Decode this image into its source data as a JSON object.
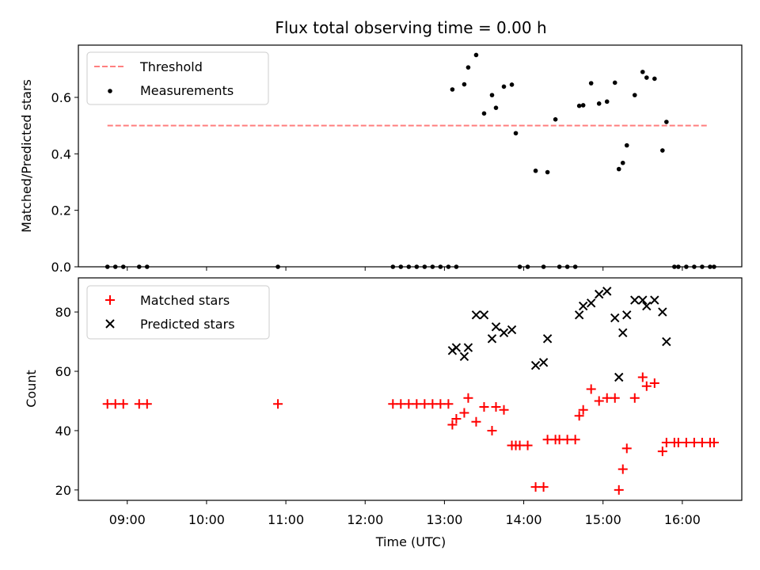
{
  "title": "Flux total observing time = 0.00 h",
  "colors": {
    "threshold": "#ff7f7f",
    "measurement": "#000000",
    "matched": "#ff0000",
    "predicted": "#000000"
  },
  "chart_data": [
    {
      "type": "scatter",
      "ylabel": "Matched/Predicted stars",
      "ylim": [
        0,
        0.785
      ],
      "yticks": [
        0.0,
        0.2,
        0.4,
        0.6
      ],
      "xlim": [
        "08:23",
        "16:45"
      ],
      "grid": false,
      "legend_position": "top-left",
      "series": [
        {
          "name": "Threshold",
          "kind": "dashed-line",
          "x": [
            "08:45",
            "16:20"
          ],
          "y": [
            0.5,
            0.5
          ]
        },
        {
          "name": "Measurements",
          "kind": "dot",
          "x": [
            "08:45",
            "08:51",
            "08:57",
            "09:09",
            "09:15",
            "10:54",
            "12:21",
            "12:27",
            "12:33",
            "12:39",
            "12:45",
            "12:51",
            "12:57",
            "13:03",
            "13:06",
            "13:09",
            "13:15",
            "13:18",
            "13:24",
            "13:30",
            "13:36",
            "13:39",
            "13:45",
            "13:51",
            "13:54",
            "13:57",
            "14:03",
            "14:09",
            "14:15",
            "14:18",
            "14:24",
            "14:27",
            "14:33",
            "14:39",
            "14:42",
            "14:45",
            "14:51",
            "14:57",
            "15:03",
            "15:09",
            "15:12",
            "15:15",
            "15:18",
            "15:24",
            "15:30",
            "15:33",
            "15:39",
            "15:45",
            "15:48",
            "15:54",
            "15:57",
            "16:03",
            "16:09",
            "16:15",
            "16:21",
            "16:24"
          ],
          "y": [
            0,
            0,
            0,
            0,
            0,
            0,
            0,
            0,
            0,
            0,
            0,
            0,
            0,
            0,
            0.628,
            0,
            0.646,
            0.706,
            0.75,
            0.543,
            0.608,
            0.563,
            0.638,
            0.645,
            0.473,
            0,
            0,
            0.34,
            0,
            0.335,
            0.522,
            0,
            0,
            0,
            0.57,
            0.572,
            0.65,
            0.578,
            0.585,
            0.652,
            0.346,
            0.368,
            0.43,
            0.608,
            0.69,
            0.67,
            0.666,
            0.412,
            0.513,
            0,
            0,
            0,
            0,
            0,
            0,
            0
          ]
        }
      ]
    },
    {
      "type": "scatter",
      "ylabel": "Count",
      "xlabel": "Time (UTC)",
      "ylim": [
        16.5,
        91.5
      ],
      "yticks": [
        20,
        40,
        60,
        80
      ],
      "xlim": [
        "08:23",
        "16:45"
      ],
      "xticks": [
        "09:00",
        "10:00",
        "11:00",
        "12:00",
        "13:00",
        "14:00",
        "15:00",
        "16:00"
      ],
      "grid": false,
      "legend_position": "top-left",
      "series": [
        {
          "name": "Matched stars",
          "kind": "plus",
          "x": [
            "08:45",
            "08:51",
            "08:57",
            "09:09",
            "09:15",
            "10:54",
            "12:21",
            "12:27",
            "12:33",
            "12:39",
            "12:45",
            "12:51",
            "12:57",
            "13:03",
            "13:06",
            "13:09",
            "13:15",
            "13:18",
            "13:24",
            "13:30",
            "13:36",
            "13:39",
            "13:45",
            "13:51",
            "13:54",
            "13:57",
            "14:03",
            "14:09",
            "14:15",
            "14:18",
            "14:24",
            "14:27",
            "14:33",
            "14:39",
            "14:42",
            "14:45",
            "14:51",
            "14:57",
            "15:03",
            "15:09",
            "15:12",
            "15:15",
            "15:18",
            "15:24",
            "15:30",
            "15:33",
            "15:39",
            "15:45",
            "15:48",
            "15:54",
            "15:57",
            "16:03",
            "16:09",
            "16:15",
            "16:21",
            "16:24"
          ],
          "y": [
            49,
            49,
            49,
            49,
            49,
            49,
            49,
            49,
            49,
            49,
            49,
            49,
            49,
            49,
            42,
            44,
            46,
            51,
            43,
            48,
            40,
            48,
            47,
            35,
            35,
            35,
            35,
            21,
            21,
            37,
            37,
            37,
            37,
            37,
            45,
            47,
            54,
            50,
            51,
            51,
            20,
            27,
            34,
            51,
            58,
            55,
            56,
            33,
            36,
            36,
            36,
            36,
            36,
            36,
            36,
            36
          ]
        },
        {
          "name": "Predicted stars",
          "kind": "cross",
          "x": [
            "13:06",
            "13:09",
            "13:15",
            "13:18",
            "13:24",
            "13:30",
            "13:36",
            "13:39",
            "13:45",
            "13:51",
            "14:09",
            "14:15",
            "14:18",
            "14:42",
            "14:45",
            "14:51",
            "14:57",
            "15:03",
            "15:09",
            "15:12",
            "15:15",
            "15:18",
            "15:24",
            "15:30",
            "15:33",
            "15:39",
            "15:45",
            "15:48"
          ],
          "y": [
            67,
            68,
            65,
            68,
            79,
            79,
            71,
            75,
            73,
            74,
            62,
            63,
            71,
            79,
            82,
            83,
            86,
            87,
            78,
            58,
            73,
            79,
            84,
            84,
            82,
            84,
            80,
            70
          ]
        }
      ]
    }
  ]
}
